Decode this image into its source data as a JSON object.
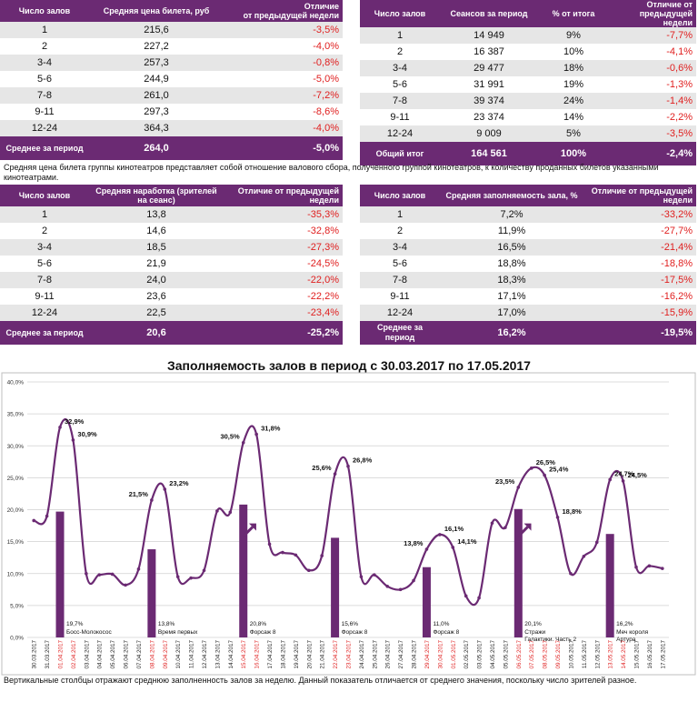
{
  "table1": {
    "headers": [
      "Число залов",
      "Средняя цена билета, руб",
      "Отличие\nот предыдущей недели"
    ],
    "rows": [
      [
        "1",
        "215,6",
        "-3,5%"
      ],
      [
        "2",
        "227,2",
        "-4,0%"
      ],
      [
        "3-4",
        "257,3",
        "-0,8%"
      ],
      [
        "5-6",
        "244,9",
        "-5,0%"
      ],
      [
        "7-8",
        "261,0",
        "-7,2%"
      ],
      [
        "9-11",
        "297,3",
        "-8,6%"
      ],
      [
        "12-24",
        "364,3",
        "-4,0%"
      ]
    ],
    "total": [
      "Среднее за период",
      "264,0",
      "-5,0%"
    ]
  },
  "table2": {
    "headers": [
      "Число залов",
      "Сеансов за период",
      "% от итога",
      "Отличие от предыдущей недели"
    ],
    "rows": [
      [
        "1",
        "14 949",
        "9%",
        "-7,7%"
      ],
      [
        "2",
        "16 387",
        "10%",
        "-4,1%"
      ],
      [
        "3-4",
        "29 477",
        "18%",
        "-0,6%"
      ],
      [
        "5-6",
        "31 991",
        "19%",
        "-1,3%"
      ],
      [
        "7-8",
        "39 374",
        "24%",
        "-1,4%"
      ],
      [
        "9-11",
        "23 374",
        "14%",
        "-2,2%"
      ],
      [
        "12-24",
        "9 009",
        "5%",
        "-3,5%"
      ]
    ],
    "total": [
      "Общий итог",
      "164 561",
      "100%",
      "-2,4%"
    ]
  },
  "note1": "Средняя цена билета группы кинотеатров представляет собой отношение валового сбора, полученного группой кинотеатров, к количеству проданных билетов указанными кинотеатрами.",
  "table3": {
    "headers": [
      "Число залов",
      "Средняя наработка (зрителей на сеанс)",
      "Отличие от предыдущей недели"
    ],
    "rows": [
      [
        "1",
        "13,8",
        "-35,3%"
      ],
      [
        "2",
        "14,6",
        "-32,8%"
      ],
      [
        "3-4",
        "18,5",
        "-27,3%"
      ],
      [
        "5-6",
        "21,9",
        "-24,5%"
      ],
      [
        "7-8",
        "24,0",
        "-22,0%"
      ],
      [
        "9-11",
        "23,6",
        "-22,2%"
      ],
      [
        "12-24",
        "22,5",
        "-23,4%"
      ]
    ],
    "total": [
      "Среднее за период",
      "20,6",
      "-25,2%"
    ]
  },
  "table4": {
    "headers": [
      "Число залов",
      "Средняя заполняемость зала, %",
      "Отличие от предыдущей недели"
    ],
    "rows": [
      [
        "1",
        "7,2%",
        "-33,2%"
      ],
      [
        "2",
        "11,9%",
        "-27,7%"
      ],
      [
        "3-4",
        "16,5%",
        "-21,4%"
      ],
      [
        "5-6",
        "18,8%",
        "-18,8%"
      ],
      [
        "7-8",
        "18,3%",
        "-17,5%"
      ],
      [
        "9-11",
        "17,1%",
        "-16,2%"
      ],
      [
        "12-24",
        "17,0%",
        "-15,9%"
      ]
    ],
    "total": [
      "Среднее за период",
      "16,2%",
      "-19,5%"
    ]
  },
  "chart_title": "Заполняемость залов в период с 30.03.2017 по 17.05.2017",
  "note2": "Вертикальные столбцы отражают среднюю заполненность залов за неделю. Данный показатель отличается от среднего значения, поскольку число зрителей разное.",
  "colors": {
    "purple": "#6b2a73",
    "red": "#e02020",
    "grid": "#d0d0d0",
    "alt_row": "#e6e6e6"
  },
  "icons": [
    "arrow-up-right-icon",
    "arrow-up-right-icon"
  ],
  "chart_data": {
    "type": "line",
    "ylim": [
      0,
      40
    ],
    "yticks": [
      "0,0%",
      "5,0%",
      "10,0%",
      "15,0%",
      "20,0%",
      "25,0%",
      "30,0%",
      "35,0%",
      "40,0%"
    ],
    "x": [
      "30.03.2017",
      "31.03.2017",
      "01.04.2017",
      "02.04.2017",
      "03.04.2017",
      "04.04.2017",
      "05.04.2017",
      "06.04.2017",
      "07.04.2017",
      "08.04.2017",
      "09.04.2017",
      "10.04.2017",
      "11.04.2017",
      "12.04.2017",
      "13.04.2017",
      "14.04.2017",
      "15.04.2017",
      "16.04.2017",
      "17.04.2017",
      "18.04.2017",
      "19.04.2017",
      "20.04.2017",
      "21.04.2017",
      "22.04.2017",
      "23.04.2017",
      "24.04.2017",
      "25.04.2017",
      "26.04.2017",
      "27.04.2017",
      "28.04.2017",
      "29.04.2017",
      "30.04.2017",
      "01.05.2017",
      "02.05.2017",
      "03.05.2017",
      "04.05.2017",
      "05.05.2017",
      "06.05.2017",
      "07.05.2017",
      "08.05.2017",
      "09.05.2017",
      "10.05.2017",
      "11.05.2017",
      "12.05.2017",
      "13.05.2017",
      "14.05.2017",
      "15.05.2017",
      "16.05.2017",
      "17.05.2017"
    ],
    "red_dates": [
      "01.04.2017",
      "02.04.2017",
      "08.04.2017",
      "09.04.2017",
      "15.04.2017",
      "16.04.2017",
      "22.04.2017",
      "23.04.2017",
      "29.04.2017",
      "30.04.2017",
      "01.05.2017",
      "06.05.2017",
      "07.05.2017",
      "08.05.2017",
      "09.05.2017",
      "13.05.2017",
      "14.05.2017"
    ],
    "series": [
      {
        "values": [
          18.3,
          19.0,
          32.9,
          30.9,
          10.0,
          9.8,
          9.9,
          8.2,
          10.7,
          21.5,
          23.2,
          9.5,
          9.3,
          10.5,
          19.8,
          19.6,
          30.5,
          31.8,
          14.6,
          13.3,
          12.9,
          10.5,
          12.8,
          25.6,
          26.8,
          9.5,
          9.8,
          8.0,
          7.5,
          8.9,
          13.8,
          16.1,
          14.1,
          6.5,
          6.2,
          17.9,
          17.2,
          23.5,
          26.5,
          25.4,
          18.8,
          10.0,
          12.7,
          14.9,
          24.7,
          24.5,
          11.0,
          11.2,
          10.8
        ]
      }
    ],
    "point_labels": [
      {
        "index": 2,
        "text": "32,9%"
      },
      {
        "index": 3,
        "text": "30,9%"
      },
      {
        "index": 9,
        "text": "21,5%"
      },
      {
        "index": 10,
        "text": "23,2%"
      },
      {
        "index": 16,
        "text": "30,5%"
      },
      {
        "index": 17,
        "text": "31,8%"
      },
      {
        "index": 23,
        "text": "25,6%"
      },
      {
        "index": 24,
        "text": "26,8%"
      },
      {
        "index": 30,
        "text": "13,8%"
      },
      {
        "index": 31,
        "text": "16,1%"
      },
      {
        "index": 32,
        "text": "14,1%"
      },
      {
        "index": 37,
        "text": "23,5%"
      },
      {
        "index": 38,
        "text": "26,5%"
      },
      {
        "index": 39,
        "text": "25,4%"
      },
      {
        "index": 40,
        "text": "18,8%"
      },
      {
        "index": 44,
        "text": "24,7%"
      },
      {
        "index": 45,
        "text": "24,5%"
      }
    ],
    "bars": [
      {
        "index": 2,
        "value": 19.7,
        "label": "19,7%",
        "film": "Босс-Молокосос"
      },
      {
        "index": 9,
        "value": 13.8,
        "label": "13,8%",
        "film": "Время первых"
      },
      {
        "index": 16,
        "value": 20.8,
        "label": "20,8%",
        "film": "Форсаж 8"
      },
      {
        "index": 23,
        "value": 15.6,
        "label": "15,6%",
        "film": "Форсаж 8"
      },
      {
        "index": 30,
        "value": 11.0,
        "label": "11,0%",
        "film": "Форсаж 8"
      },
      {
        "index": 37,
        "value": 20.1,
        "label": "20,1%",
        "film": "Стражи Галактики. Часть 2"
      },
      {
        "index": 44,
        "value": 16.2,
        "label": "16,2%",
        "film": "Меч короля Артура"
      }
    ],
    "arrow_indexes": [
      11.5,
      32.5
    ]
  }
}
